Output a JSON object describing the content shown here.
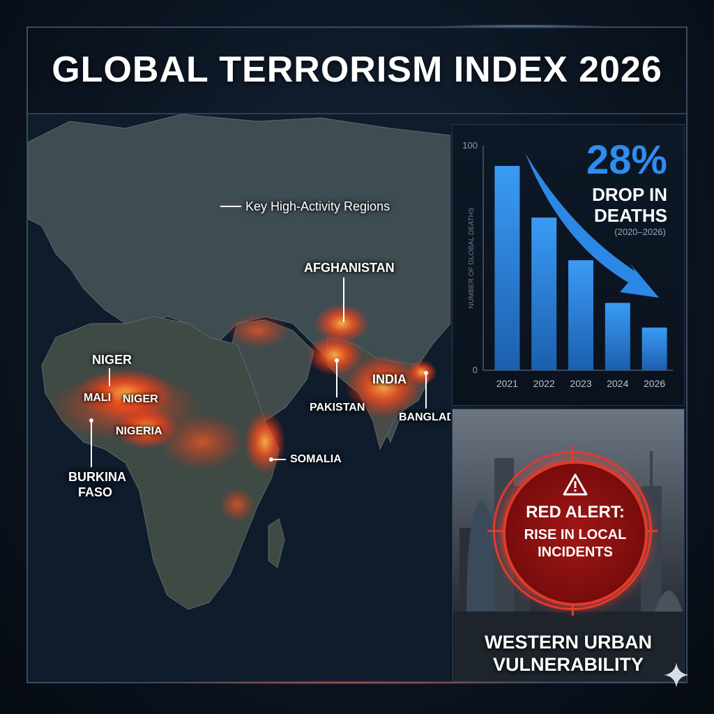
{
  "title": "GLOBAL TERRORISM INDEX 2026",
  "map": {
    "legend_label": "Key High-Activity Regions",
    "labels": {
      "niger_top": "NIGER",
      "mali": "MALI",
      "niger": "NIGER",
      "nigeria": "NIGERIA",
      "burkina_1": "BURKINA",
      "burkina_2": "FASO",
      "somalia": "SOMALIA",
      "afghanistan": "AFGHANISTAN",
      "pakistan": "PAKISTAN",
      "india": "INDIA",
      "bangladesh": "BANGLADESH"
    },
    "colors": {
      "ocean": "#0e1c2b",
      "land": "#3b4a4e",
      "hotspot": "#ff5a1f"
    }
  },
  "chart_data": {
    "type": "bar",
    "categories": [
      "2021",
      "2022",
      "2023",
      "2024",
      "2026"
    ],
    "values": [
      91,
      68,
      49,
      30,
      19
    ],
    "ylim": [
      0,
      100
    ],
    "y_ticks": [
      "100",
      "0"
    ],
    "ylabel": "NUMBER OF GLOBAL DEATHS",
    "xlabel": "",
    "grid": false,
    "annotation": {
      "value": "28%",
      "line1": "DROP IN",
      "line2": "DEATHS",
      "period": "(2020–2026)"
    },
    "colors": {
      "bar": "#2d8be6",
      "accent": "#2f8df0"
    }
  },
  "alert": {
    "head": "RED ALERT:",
    "sub_line1": "RISE IN LOCAL",
    "sub_line2": "INCIDENTS",
    "title_line1": "WESTERN URBAN",
    "title_line2": "VULNERABILITY",
    "icon": "warning-icon",
    "colors": {
      "ring": "#e23a2a",
      "fill": "#8e1010"
    }
  }
}
